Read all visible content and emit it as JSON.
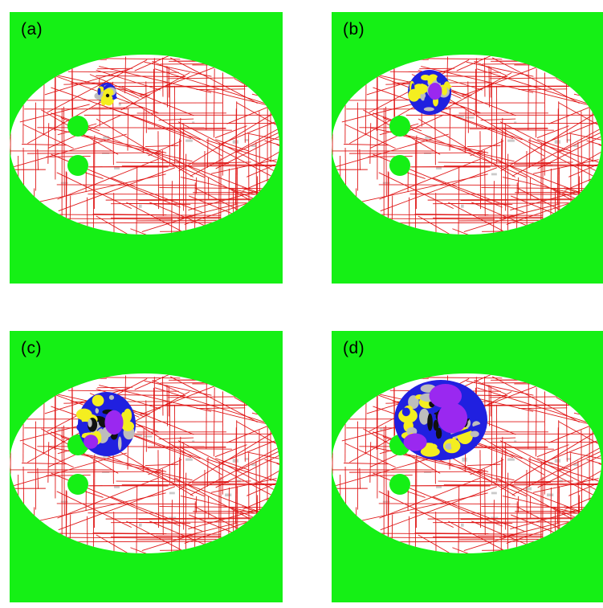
{
  "figure": {
    "panels": [
      {
        "id": "a",
        "label": "(a)",
        "damage_stage": 1
      },
      {
        "id": "b",
        "label": "(b)",
        "damage_stage": 2
      },
      {
        "id": "c",
        "label": "(c)",
        "damage_stage": 3
      },
      {
        "id": "d",
        "label": "(d)",
        "damage_stage": 4
      }
    ],
    "colors": {
      "background": "#15f015",
      "specimen": "#ffffff",
      "fractures": "#e01818",
      "holes": "#15f015",
      "damage_blue": "#2020e0",
      "damage_yellow": "#f4ee20",
      "damage_purple": "#9a28f0",
      "damage_black": "#101010",
      "damage_grey": "#bdbdbd"
    }
  }
}
